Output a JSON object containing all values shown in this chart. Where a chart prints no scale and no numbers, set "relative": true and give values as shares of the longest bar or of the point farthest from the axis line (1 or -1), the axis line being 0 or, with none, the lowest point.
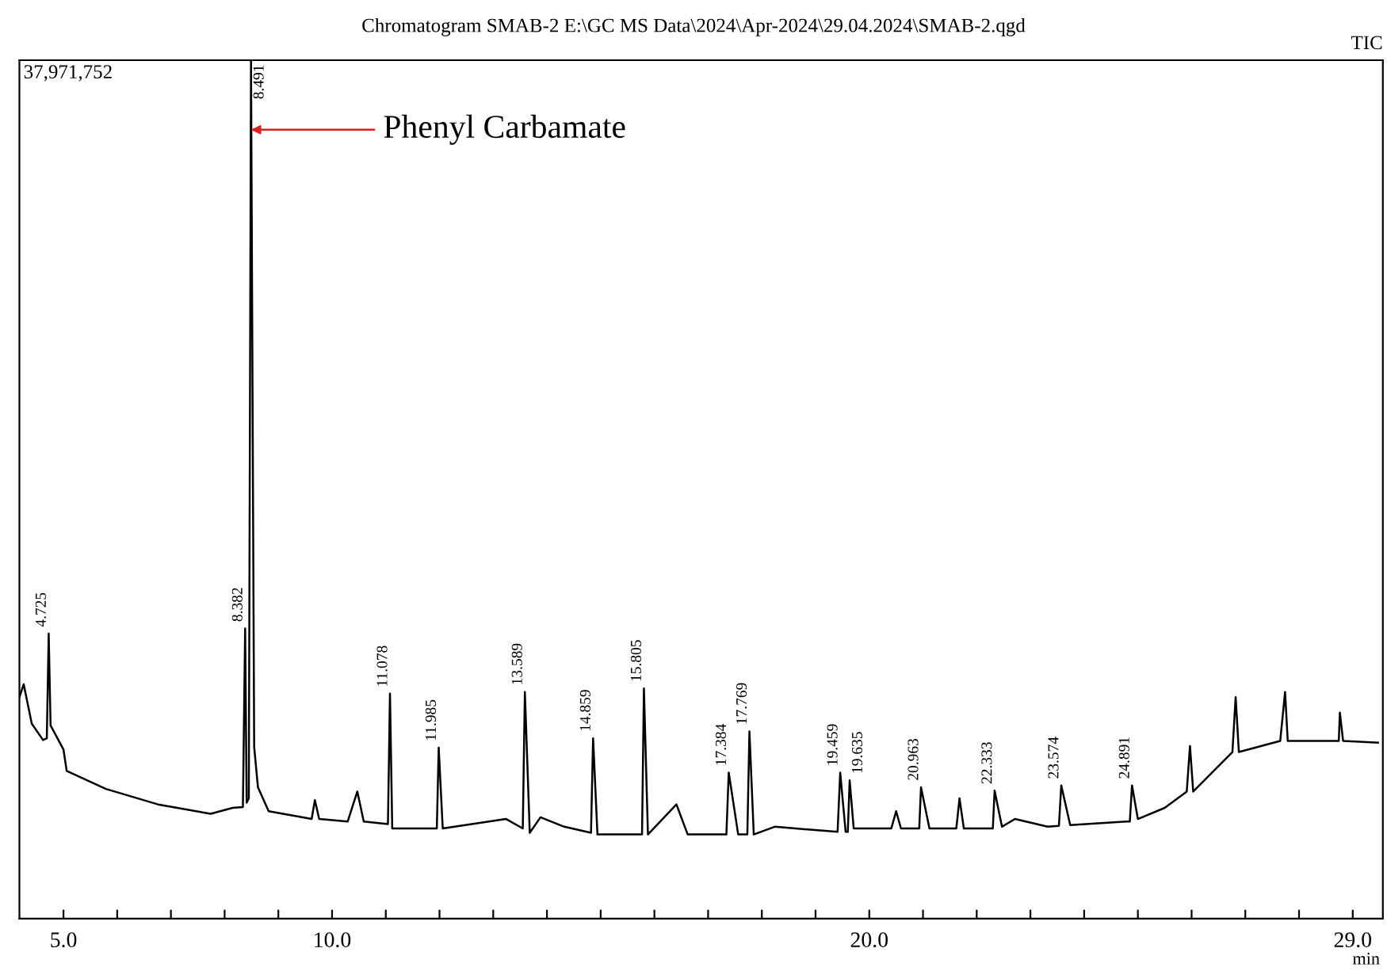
{
  "chart_data": {
    "type": "line",
    "title": "Chromatogram SMAB-2 E:\\GC MS Data\\2024\\Apr-2024\\29.04.2024\\SMAB-2.qgd",
    "xlabel": "min",
    "relative": true,
    "xlim": [
      4.18,
      29.56
    ],
    "xticks": [
      {
        "value": 5,
        "label": "5.0"
      },
      {
        "value": 6,
        "label": null
      },
      {
        "value": 7,
        "label": null
      },
      {
        "value": 8,
        "label": null
      },
      {
        "value": 9,
        "label": null
      },
      {
        "value": 10,
        "label": "10.0"
      },
      {
        "value": 11,
        "label": null
      },
      {
        "value": 12,
        "label": null
      },
      {
        "value": 13,
        "label": null
      },
      {
        "value": 14,
        "label": null
      },
      {
        "value": 15,
        "label": null
      },
      {
        "value": 16,
        "label": null
      },
      {
        "value": 17,
        "label": null
      },
      {
        "value": 18,
        "label": null
      },
      {
        "value": 19,
        "label": null
      },
      {
        "value": 20,
        "label": "20.0"
      },
      {
        "value": 21,
        "label": null
      },
      {
        "value": 22,
        "label": null
      },
      {
        "value": 23,
        "label": null
      },
      {
        "value": 24,
        "label": null
      },
      {
        "value": 25,
        "label": null
      },
      {
        "value": 26,
        "label": null
      },
      {
        "value": 27,
        "label": null
      },
      {
        "value": 28,
        "label": null
      },
      {
        "value": 29,
        "label": "29.0"
      }
    ],
    "grid": false,
    "series": [
      {
        "color": "#000000",
        "x": [
          4.18,
          4.26,
          4.41,
          4.62,
          4.69,
          4.725,
          4.76,
          5.0,
          5.06,
          5.79,
          6.76,
          7.74,
          8.15,
          8.34,
          8.382,
          8.41,
          8.45,
          8.491,
          8.55,
          8.62,
          8.82,
          9.62,
          9.68,
          9.76,
          10.29,
          10.47,
          10.59,
          11.04,
          11.078,
          11.12,
          11.95,
          11.985,
          12.06,
          13.24,
          13.55,
          13.589,
          13.68,
          13.88,
          14.32,
          14.82,
          14.859,
          14.94,
          15.77,
          15.805,
          15.88,
          16.41,
          16.62,
          17.34,
          17.384,
          17.56,
          17.73,
          17.769,
          17.85,
          18.24,
          19.41,
          19.459,
          19.56,
          19.6,
          19.635,
          19.71,
          20.41,
          20.5,
          20.59,
          20.93,
          20.963,
          21.12,
          21.62,
          21.68,
          21.76,
          22.3,
          22.333,
          22.47,
          22.71,
          23.32,
          23.53,
          23.574,
          23.74,
          24.79,
          24.85,
          24.891,
          25.0,
          25.5,
          25.91,
          25.97,
          26.03,
          26.76,
          26.82,
          26.88,
          27.65,
          27.74,
          27.79,
          28.74,
          28.76,
          28.82,
          29.47
        ],
        "values": [
          0.258,
          0.273,
          0.227,
          0.208,
          0.21,
          0.332,
          0.225,
          0.197,
          0.172,
          0.151,
          0.133,
          0.122,
          0.129,
          0.13,
          0.338,
          0.135,
          0.14,
          1.0,
          0.2,
          0.153,
          0.125,
          0.116,
          0.138,
          0.116,
          0.113,
          0.148,
          0.113,
          0.11,
          0.262,
          0.105,
          0.105,
          0.199,
          0.105,
          0.116,
          0.105,
          0.264,
          0.1,
          0.118,
          0.107,
          0.1,
          0.21,
          0.098,
          0.098,
          0.268,
          0.098,
          0.133,
          0.098,
          0.098,
          0.17,
          0.098,
          0.098,
          0.218,
          0.098,
          0.107,
          0.101,
          0.17,
          0.101,
          0.101,
          0.161,
          0.105,
          0.105,
          0.125,
          0.105,
          0.105,
          0.153,
          0.105,
          0.105,
          0.14,
          0.105,
          0.105,
          0.149,
          0.107,
          0.116,
          0.107,
          0.108,
          0.155,
          0.109,
          0.113,
          0.113,
          0.155,
          0.116,
          0.129,
          0.148,
          0.201,
          0.148,
          0.194,
          0.258,
          0.194,
          0.207,
          0.264,
          0.207,
          0.207,
          0.24,
          0.207,
          0.205
        ]
      }
    ],
    "annotations": [
      "37,971,752",
      "TIC",
      {
        "text": "Phenyl Carbamate",
        "x": 8.491,
        "y": 0.919
      },
      {
        "text": "4.725",
        "x": 4.725,
        "y": 0.332
      },
      {
        "text": "8.382",
        "x": 8.382,
        "y": 0.338
      },
      {
        "text": "8.491",
        "x": 8.491,
        "y": 1.0
      },
      {
        "text": "11.078",
        "x": 11.078,
        "y": 0.262
      },
      {
        "text": "11.985",
        "x": 11.985,
        "y": 0.199
      },
      {
        "text": "13.589",
        "x": 13.589,
        "y": 0.264
      },
      {
        "text": "14.859",
        "x": 14.859,
        "y": 0.21
      },
      {
        "text": "15.805",
        "x": 15.805,
        "y": 0.268
      },
      {
        "text": "17.384",
        "x": 17.384,
        "y": 0.17
      },
      {
        "text": "17.769",
        "x": 17.769,
        "y": 0.218
      },
      {
        "text": "19.459",
        "x": 19.459,
        "y": 0.17
      },
      {
        "text": "19.635",
        "x": 19.635,
        "y": 0.161
      },
      {
        "text": "20.963",
        "x": 20.963,
        "y": 0.153
      },
      {
        "text": "22.333",
        "x": 22.333,
        "y": 0.149
      },
      {
        "text": "23.574",
        "x": 23.574,
        "y": 0.155
      },
      {
        "text": "24.891",
        "x": 24.891,
        "y": 0.155
      }
    ]
  }
}
